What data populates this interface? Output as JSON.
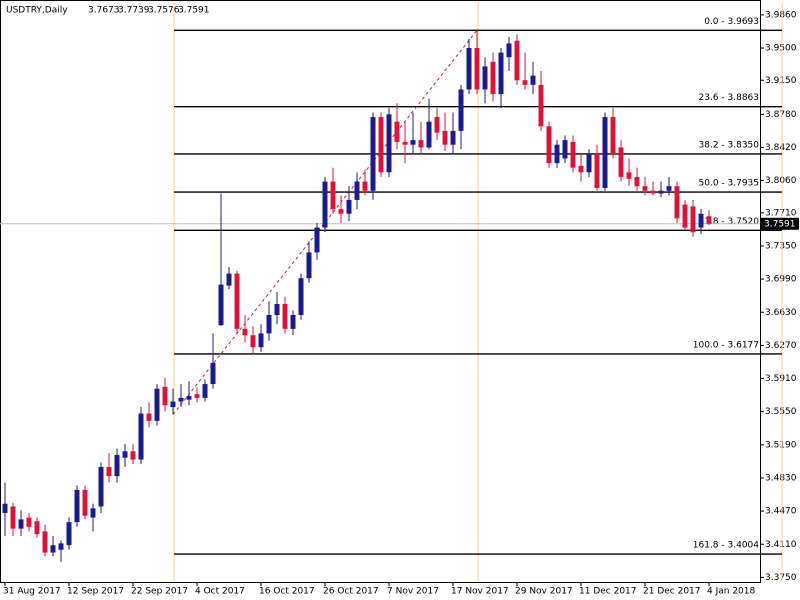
{
  "chart_data": {
    "type": "candlestick",
    "title": "USDTRY,Daily",
    "up_color": "#1c1c8f",
    "down_color": "#dc143c",
    "fib_color": "#000000",
    "ylim": [
      3.37,
      4.0
    ],
    "yticks": [
      {
        "value": 3.986,
        "label": "3.9860"
      },
      {
        "value": 3.95,
        "label": "3.9500"
      },
      {
        "value": 3.915,
        "label": "3.9150"
      },
      {
        "value": 3.878,
        "label": "3.8780"
      },
      {
        "value": 3.842,
        "label": "3.8420"
      },
      {
        "value": 3.806,
        "label": "3.8060"
      },
      {
        "value": 3.771,
        "label": "3.7710"
      },
      {
        "value": 3.735,
        "label": "3.7350"
      },
      {
        "value": 3.699,
        "label": "3.6990"
      },
      {
        "value": 3.663,
        "label": "3.6630"
      },
      {
        "value": 3.627,
        "label": "3.6270"
      },
      {
        "value": 3.591,
        "label": "3.5910"
      },
      {
        "value": 3.555,
        "label": "3.5550"
      },
      {
        "value": 3.519,
        "label": "3.5190"
      },
      {
        "value": 3.483,
        "label": "3.4830"
      },
      {
        "value": 3.447,
        "label": "3.4470"
      },
      {
        "value": 3.411,
        "label": "3.4110"
      },
      {
        "value": 3.375,
        "label": "3.3750"
      }
    ],
    "categories": [
      "31 Aug 2017",
      null,
      null,
      null,
      null,
      null,
      null,
      null,
      "12 Sep 2017",
      null,
      null,
      null,
      null,
      null,
      null,
      null,
      "22 Sep 2017",
      null,
      null,
      null,
      null,
      null,
      null,
      null,
      "4 Oct 2017",
      null,
      null,
      null,
      null,
      null,
      null,
      null,
      "16 Oct 2017",
      null,
      null,
      null,
      null,
      null,
      null,
      null,
      "26 Oct 2017",
      null,
      null,
      null,
      null,
      null,
      null,
      null,
      "7 Nov 2017",
      null,
      null,
      null,
      null,
      null,
      null,
      null,
      "17 Nov 2017",
      null,
      null,
      null,
      null,
      null,
      null,
      null,
      "29 Nov 2017",
      null,
      null,
      null,
      null,
      null,
      null,
      null,
      "11 Dec 2017",
      null,
      null,
      null,
      null,
      null,
      null,
      null,
      "21 Dec 2017",
      null,
      null,
      null,
      null,
      null,
      null,
      null,
      "4 Jan 2018"
    ],
    "open": [
      3.445,
      3.452,
      3.428,
      3.44,
      3.436,
      3.425,
      3.402,
      3.405,
      3.41,
      3.435,
      3.47,
      3.44,
      3.452,
      3.495,
      3.485,
      3.505,
      3.512,
      3.503,
      3.553,
      3.545,
      3.582,
      3.56,
      3.566,
      3.568,
      3.574,
      3.57,
      3.585,
      3.649,
      3.692,
      3.705,
      3.645,
      3.638,
      3.625,
      3.64,
      3.66,
      3.672,
      3.645,
      3.66,
      3.7,
      3.728,
      3.755,
      3.805,
      3.775,
      3.77,
      3.785,
      3.805,
      3.795,
      3.875,
      3.815,
      3.87,
      3.848,
      3.845,
      3.85,
      3.842,
      3.875,
      3.86,
      3.845,
      3.86,
      3.905,
      3.95,
      3.905,
      3.935,
      3.9,
      3.94,
      3.958,
      3.915,
      3.91,
      3.91,
      3.865,
      3.825,
      3.83,
      3.848,
      3.822,
      3.815,
      3.835,
      3.798,
      3.875,
      3.842,
      3.815,
      3.81,
      3.8,
      3.795,
      3.792,
      3.795,
      3.8,
      3.78,
      3.778,
      3.755,
      3.7673
    ],
    "high": [
      3.478,
      3.456,
      3.448,
      3.445,
      3.44,
      3.432,
      3.42,
      3.415,
      3.44,
      3.475,
      3.475,
      3.455,
      3.5,
      3.51,
      3.515,
      3.52,
      3.52,
      3.56,
      3.565,
      3.585,
      3.592,
      3.58,
      3.585,
      3.588,
      3.582,
      3.59,
      3.64,
      3.792,
      3.712,
      3.708,
      3.66,
      3.648,
      3.65,
      3.675,
      3.685,
      3.68,
      3.665,
      3.705,
      3.74,
      3.76,
      3.81,
      3.82,
      3.79,
      3.8,
      3.815,
      3.818,
      3.88,
      3.88,
      3.885,
      3.89,
      3.87,
      3.88,
      3.87,
      3.895,
      3.885,
      3.88,
      3.88,
      3.91,
      3.96,
      3.9693,
      3.94,
      3.945,
      3.95,
      3.962,
      3.965,
      3.945,
      3.935,
      3.925,
      3.87,
      3.85,
      3.855,
      3.855,
      3.835,
      3.84,
      3.845,
      3.88,
      3.885,
      3.85,
      3.83,
      3.82,
      3.81,
      3.805,
      3.805,
      3.81,
      3.805,
      3.785,
      3.785,
      3.775,
      3.7739
    ],
    "low": [
      3.42,
      3.42,
      3.42,
      3.425,
      3.418,
      3.398,
      3.398,
      3.392,
      3.405,
      3.43,
      3.438,
      3.425,
      3.445,
      3.478,
      3.478,
      3.495,
      3.498,
      3.498,
      3.538,
      3.54,
      3.555,
      3.552,
      3.56,
      3.562,
      3.565,
      3.566,
      3.58,
      3.648,
      3.688,
      3.64,
      3.63,
      3.6177,
      3.62,
      3.632,
      3.65,
      3.64,
      3.638,
      3.655,
      3.695,
      3.72,
      3.75,
      3.77,
      3.76,
      3.762,
      3.775,
      3.79,
      3.785,
      3.81,
      3.81,
      3.84,
      3.825,
      3.835,
      3.835,
      3.84,
      3.85,
      3.838,
      3.835,
      3.84,
      3.9,
      3.9,
      3.89,
      3.892,
      3.885,
      3.925,
      3.91,
      3.905,
      3.9,
      3.86,
      3.82,
      3.82,
      3.825,
      3.815,
      3.805,
      3.81,
      3.795,
      3.795,
      3.83,
      3.805,
      3.8,
      3.795,
      3.79,
      3.79,
      3.788,
      3.79,
      3.76,
      3.752,
      3.745,
      3.748,
      3.7576
    ],
    "close": [
      3.455,
      3.428,
      3.438,
      3.43,
      3.422,
      3.402,
      3.41,
      3.412,
      3.435,
      3.47,
      3.442,
      3.45,
      3.495,
      3.485,
      3.508,
      3.512,
      3.503,
      3.553,
      3.545,
      3.58,
      3.562,
      3.566,
      3.57,
      3.572,
      3.57,
      3.585,
      3.608,
      3.693,
      3.705,
      3.645,
      3.638,
      3.625,
      3.64,
      3.66,
      3.672,
      3.645,
      3.66,
      3.7,
      3.728,
      3.755,
      3.805,
      3.775,
      3.77,
      3.785,
      3.805,
      3.795,
      3.875,
      3.815,
      3.878,
      3.848,
      3.845,
      3.85,
      3.842,
      3.87,
      3.858,
      3.845,
      3.86,
      3.905,
      3.95,
      3.905,
      3.93,
      3.9,
      3.945,
      3.955,
      3.915,
      3.91,
      3.92,
      3.865,
      3.825,
      3.845,
      3.85,
      3.82,
      3.815,
      3.835,
      3.798,
      3.875,
      3.835,
      3.81,
      3.808,
      3.8,
      3.795,
      3.792,
      3.795,
      3.8,
      3.765,
      3.755,
      3.75,
      3.77,
      3.7591
    ],
    "fibonacci": [
      {
        "value": 3.9693,
        "label": "0.0 - 3.9693"
      },
      {
        "value": 3.8863,
        "label": "23.6 - 3.8863"
      },
      {
        "value": 3.835,
        "label": "38.2 - 3.8350"
      },
      {
        "value": 3.7935,
        "label": "50.0 - 3.7935"
      },
      {
        "value": 3.752,
        "label": "61.8 - 3.7520"
      },
      {
        "value": 3.6177,
        "label": "100.0 - 3.6177"
      },
      {
        "value": 3.4004,
        "label": "161.8 - 3.4004"
      }
    ]
  }
}
